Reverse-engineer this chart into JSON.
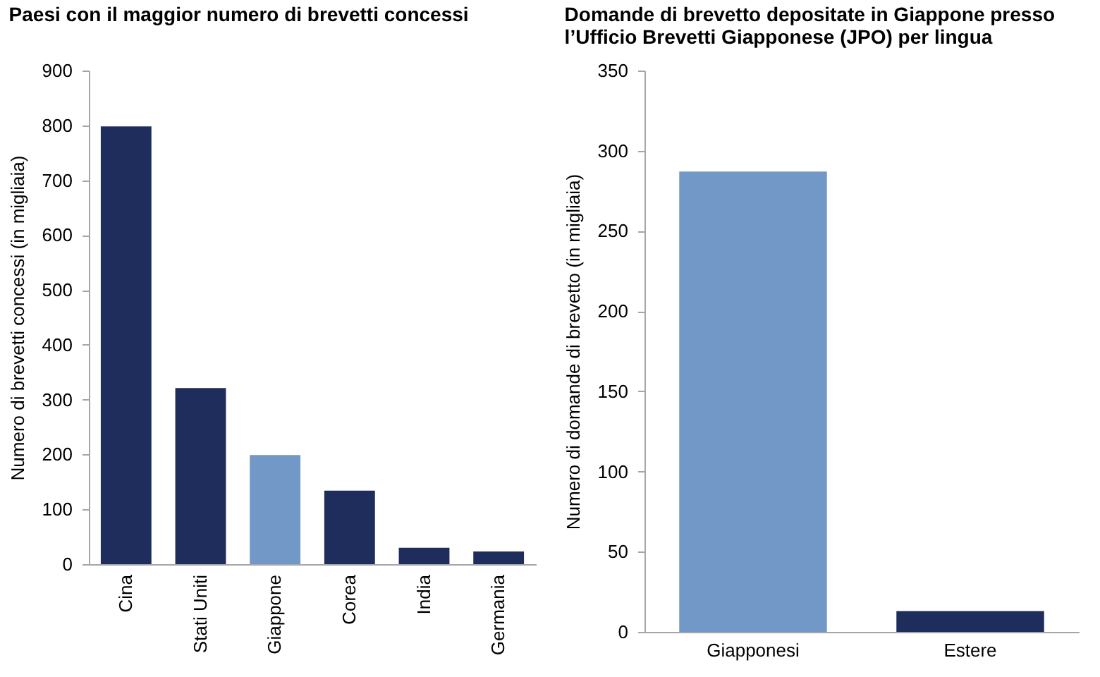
{
  "chart_data": [
    {
      "type": "bar",
      "title": "Paesi con il maggior numero di brevetti concessi",
      "ylabel": "Numero di brevetti concessi (in migliaia)",
      "categories": [
        "Cina",
        "Stati Uniti",
        "Giappone",
        "Corea",
        "India",
        "Germania"
      ],
      "values": [
        798,
        321,
        199,
        134,
        30,
        23
      ],
      "colors": [
        "#1f2d5c",
        "#1f2d5c",
        "#7198c6",
        "#1f2d5c",
        "#1f2d5c",
        "#1f2d5c"
      ],
      "ylim": [
        0,
        900
      ],
      "yticks": [
        0,
        100,
        200,
        300,
        400,
        500,
        600,
        700,
        800,
        900
      ]
    },
    {
      "type": "bar",
      "title": "Domande di brevetto depositate in Giappone presso l’Ufficio Brevetti Giapponese (JPO) per lingua",
      "ylabel": "Numero di domande di brevetto (in migliaia)",
      "categories": [
        "Giapponesi",
        "Estere"
      ],
      "values": [
        287,
        13
      ],
      "colors": [
        "#7198c6",
        "#1f2d5c"
      ],
      "ylim": [
        0,
        350
      ],
      "yticks": [
        0,
        50,
        100,
        150,
        200,
        250,
        300,
        350
      ]
    }
  ]
}
